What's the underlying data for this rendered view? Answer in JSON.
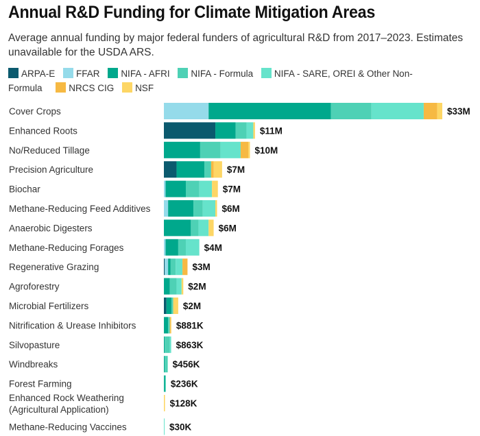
{
  "title": "Annual R&D Funding for Climate Mitigation Areas",
  "subtitle": "Average annual funding by major federal funders of agricultural R&D from 2017–2023. Estimates unavailable for the USDA ARS.",
  "chart_data": {
    "type": "bar",
    "orientation": "horizontal",
    "stacked": true,
    "title": "Annual R&D Funding for Climate Mitigation Areas",
    "subtitle": "Average annual funding by major federal funders of agricultural R&D from 2017–2023. Estimates unavailable for the USDA ARS.",
    "xlabel": "",
    "ylabel": "",
    "units": "USD millions",
    "grid": false,
    "legend_position": "top",
    "xlim": [
      0,
      33
    ],
    "categories": [
      "Cover Crops",
      "Enhanced Roots",
      "No/Reduced Tillage",
      "Precision Agriculture",
      "Biochar",
      "Methane-Reducing Feed Additives",
      "Anaerobic Digesters",
      "Methane-Reducing Forages",
      "Regenerative Grazing",
      "Agroforestry",
      "Microbial Fertilizers",
      "Nitrification & Urease Inhibitors",
      "Silvopasture",
      "Windbreaks",
      "Forest Farming",
      "Enhanced Rock Weathering (Agricultural Application)",
      "Methane-Reducing Vaccines"
    ],
    "category_lines": [
      [
        "Cover Crops"
      ],
      [
        "Enhanced Roots"
      ],
      [
        "No/Reduced Tillage"
      ],
      [
        "Precision Agriculture"
      ],
      [
        "Biochar"
      ],
      [
        "Methane-Reducing Feed Additives"
      ],
      [
        "Anaerobic Digesters"
      ],
      [
        "Methane-Reducing Forages"
      ],
      [
        "Regenerative Grazing"
      ],
      [
        "Agroforestry"
      ],
      [
        "Microbial Fertilizers"
      ],
      [
        "Nitrification & Urease Inhibitors"
      ],
      [
        "Silvopasture"
      ],
      [
        "Windbreaks"
      ],
      [
        "Forest Farming"
      ],
      [
        "Enhanced Rock Weathering",
        "(Agricultural Application)"
      ],
      [
        "Methane-Reducing Vaccines"
      ]
    ],
    "total_labels": [
      "$33M",
      "$11M",
      "$10M",
      "$7M",
      "$7M",
      "$6M",
      "$6M",
      "$4M",
      "$3M",
      "$2M",
      "$2M",
      "$881K",
      "$863K",
      "$456K",
      "$236K",
      "$128K",
      "$30K"
    ],
    "series": [
      {
        "name": "ARPA-E",
        "color": "#0b5a6e",
        "values": [
          0,
          6.1,
          0,
          1.5,
          0,
          0,
          0,
          0,
          0.1,
          0,
          0.3,
          0,
          0,
          0,
          0,
          0,
          0
        ]
      },
      {
        "name": "FFAR",
        "color": "#95dbea",
        "values": [
          5.3,
          0,
          0,
          0,
          0.2,
          0.5,
          0,
          0.2,
          0.4,
          0,
          0,
          0,
          0,
          0,
          0,
          0,
          0
        ]
      },
      {
        "name": "NIFA - AFRI",
        "color": "#00a88c",
        "values": [
          14.5,
          2.4,
          4.3,
          3.3,
          2.4,
          3.0,
          3.2,
          1.5,
          0.3,
          0.7,
          0.6,
          0.5,
          0.1,
          0.1,
          0.12,
          0,
          0
        ]
      },
      {
        "name": "NIFA - Formula",
        "color": "#4ed1b5",
        "values": [
          4.8,
          1.3,
          2.4,
          0.8,
          1.6,
          1.1,
          0.9,
          0.9,
          0.6,
          0.8,
          0.2,
          0.2,
          0.6,
          0.356,
          0.116,
          0,
          0
        ]
      },
      {
        "name": "NIFA - SARE, OREI & Other Non-Formula",
        "color": "#66e3cb",
        "values": [
          6.2,
          0.8,
          2.4,
          0,
          1.5,
          1.5,
          1.2,
          1.6,
          0.8,
          0.6,
          0,
          0,
          0.163,
          0,
          0,
          0,
          0.03
        ]
      },
      {
        "name": "NRCS CIG",
        "color": "#f6b943",
        "values": [
          1.6,
          0,
          0.9,
          0.3,
          0,
          0,
          0,
          0,
          0.6,
          0,
          0,
          0.1,
          0,
          0,
          0,
          0,
          0
        ]
      },
      {
        "name": "NSF",
        "color": "#fdd665",
        "values": [
          0.6,
          0.2,
          0.2,
          1.0,
          0.7,
          0.2,
          0.6,
          0,
          0,
          0.2,
          0.6,
          0.081,
          0,
          0,
          0,
          0.128,
          0
        ]
      }
    ]
  },
  "legend": {
    "items": [
      {
        "label": "ARPA-E",
        "color": "#0b5a6e"
      },
      {
        "label": "FFAR",
        "color": "#95dbea"
      },
      {
        "label": "NIFA - AFRI",
        "color": "#00a88c"
      },
      {
        "label": "NIFA - Formula",
        "color": "#4ed1b5"
      },
      {
        "label": "NIFA - SARE, OREI & Other Non-Formula",
        "color": "#66e3cb"
      },
      {
        "label": "NRCS CIG",
        "color": "#f6b943"
      },
      {
        "label": "NSF",
        "color": "#fdd665"
      }
    ]
  }
}
